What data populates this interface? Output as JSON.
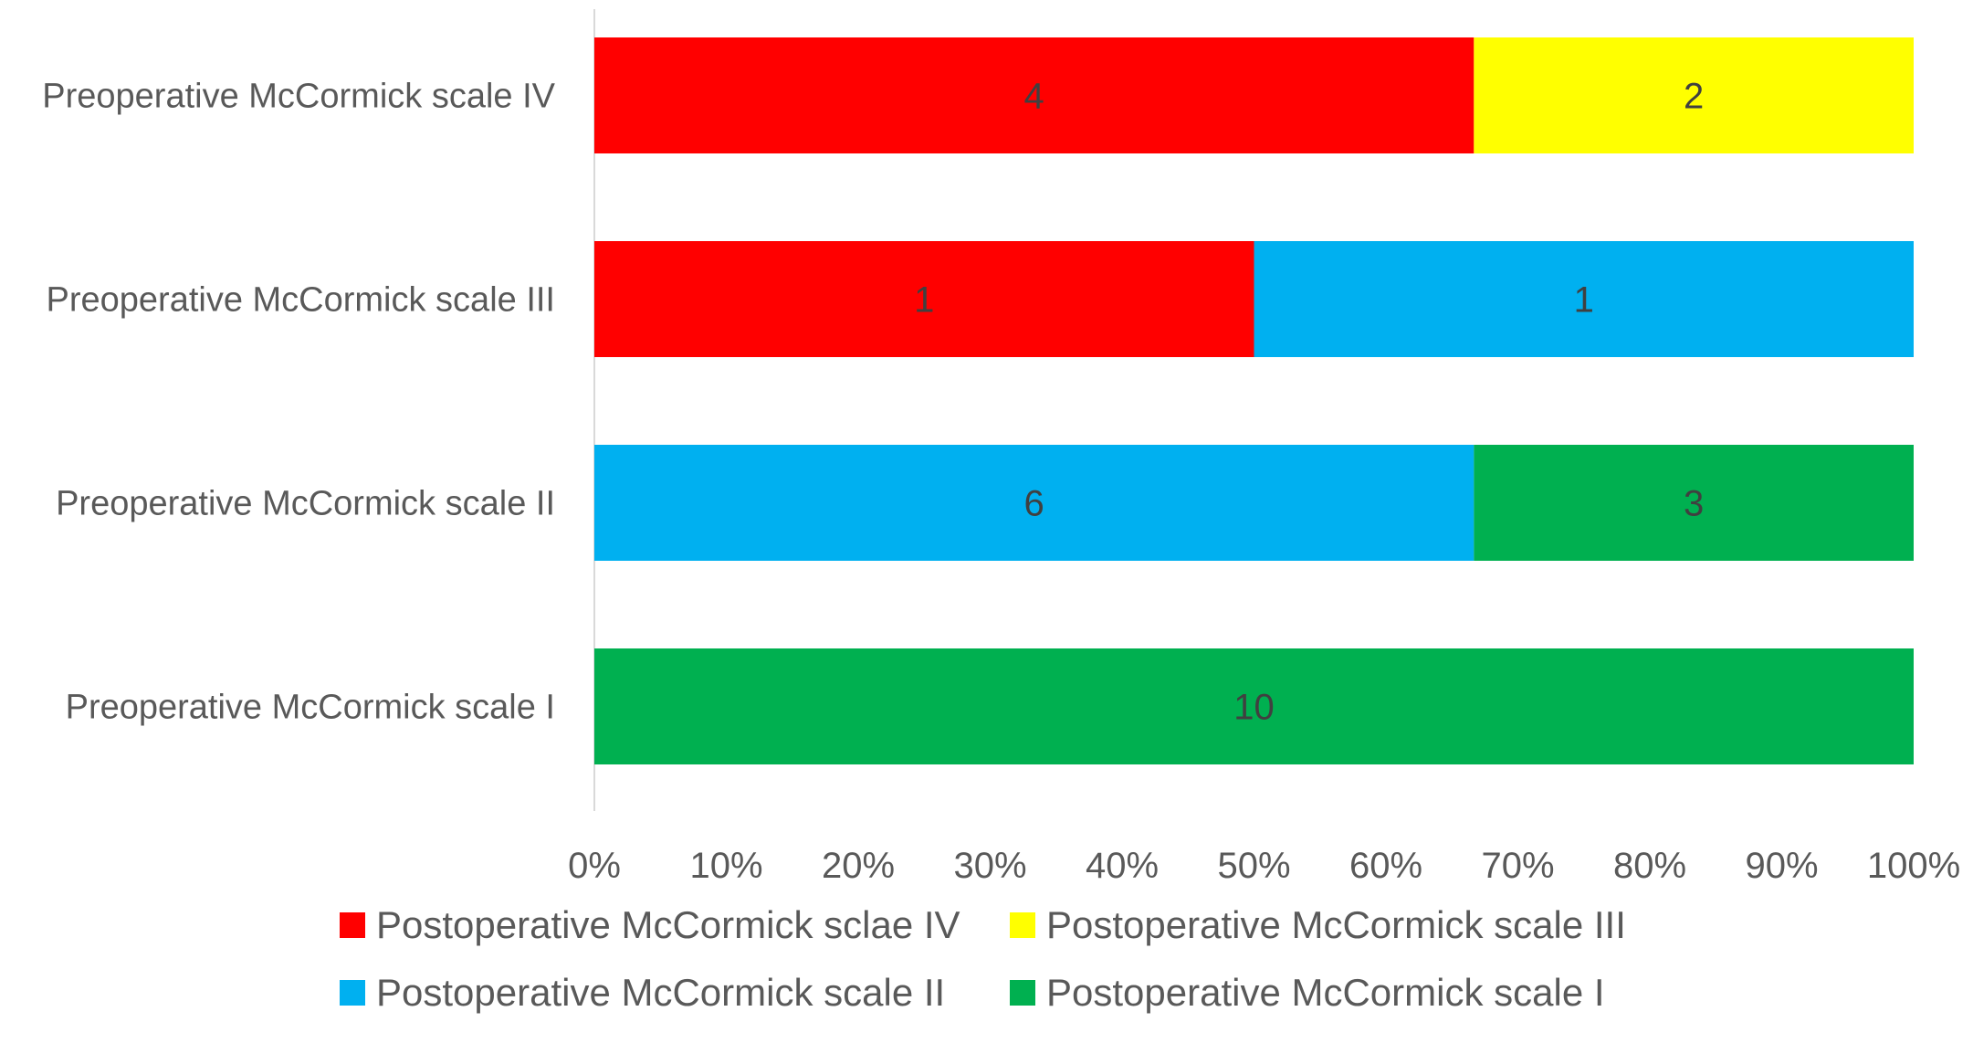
{
  "chart_data": {
    "type": "bar",
    "orientation": "horizontal",
    "stacking": "percent",
    "categories": [
      "Preoperative McCormick scale IV",
      "Preoperative McCormick scale III",
      "Preoperative McCormick scale II",
      "Preoperative McCormick scale I"
    ],
    "series": [
      {
        "name": "Postoperative McCormick sclae IV",
        "color": "#FF0000",
        "values": [
          4,
          1,
          null,
          null
        ]
      },
      {
        "name": "Postoperative McCormick scale III",
        "color": "#FFFF00",
        "values": [
          2,
          null,
          null,
          null
        ]
      },
      {
        "name": "Postoperative McCormick scale II",
        "color": "#00B0F0",
        "values": [
          null,
          1,
          6,
          null
        ]
      },
      {
        "name": "Postoperative McCormick scale I",
        "color": "#00B050",
        "values": [
          null,
          null,
          3,
          10
        ]
      }
    ],
    "xticks": [
      "0%",
      "10%",
      "20%",
      "30%",
      "40%",
      "50%",
      "60%",
      "70%",
      "80%",
      "90%",
      "100%"
    ],
    "xlim": [
      0,
      100
    ],
    "grid": false,
    "legend_position": "bottom",
    "title": "",
    "xlabel": "",
    "ylabel": ""
  }
}
